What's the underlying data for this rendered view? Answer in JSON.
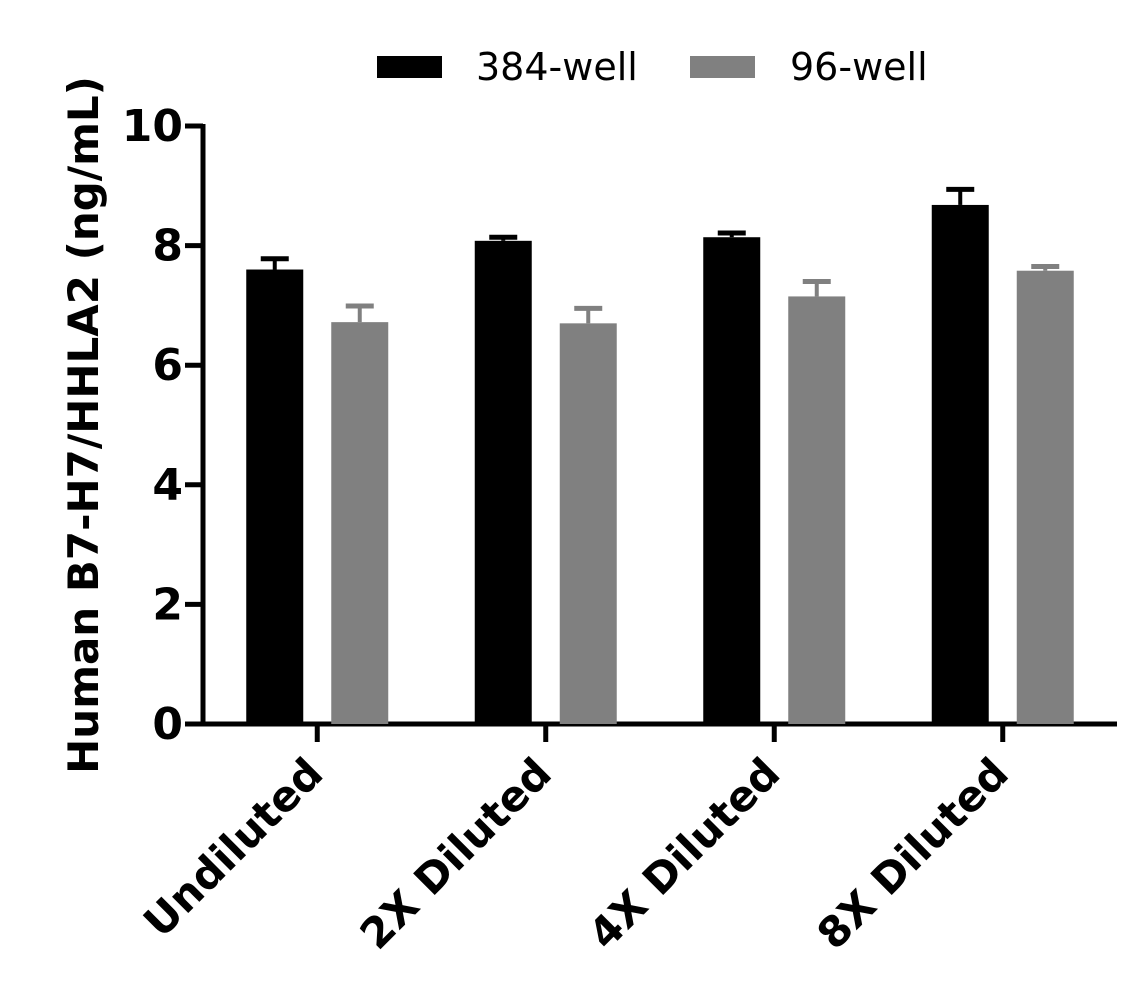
{
  "chart_data": {
    "type": "bar",
    "ylabel": "Human B7-H7/HHLA2 (ng/mL)",
    "xlabel": "",
    "ylim": [
      0,
      10
    ],
    "yticks": [
      "0",
      "2",
      "4",
      "6",
      "8",
      "10"
    ],
    "categories": [
      "Undiluted",
      "2X Diluted",
      "4X Diluted",
      "8X Diluted"
    ],
    "legend_position": "top-center",
    "series": [
      {
        "name": "384-well",
        "color": "#000000",
        "values": [
          7.6,
          8.08,
          8.14,
          8.68
        ],
        "errors": [
          0.18,
          0.06,
          0.07,
          0.26
        ]
      },
      {
        "name": "96-well",
        "color": "#808080",
        "values": [
          6.72,
          6.7,
          7.15,
          7.58
        ],
        "errors": [
          0.27,
          0.25,
          0.25,
          0.07
        ]
      }
    ],
    "grid": false
  }
}
